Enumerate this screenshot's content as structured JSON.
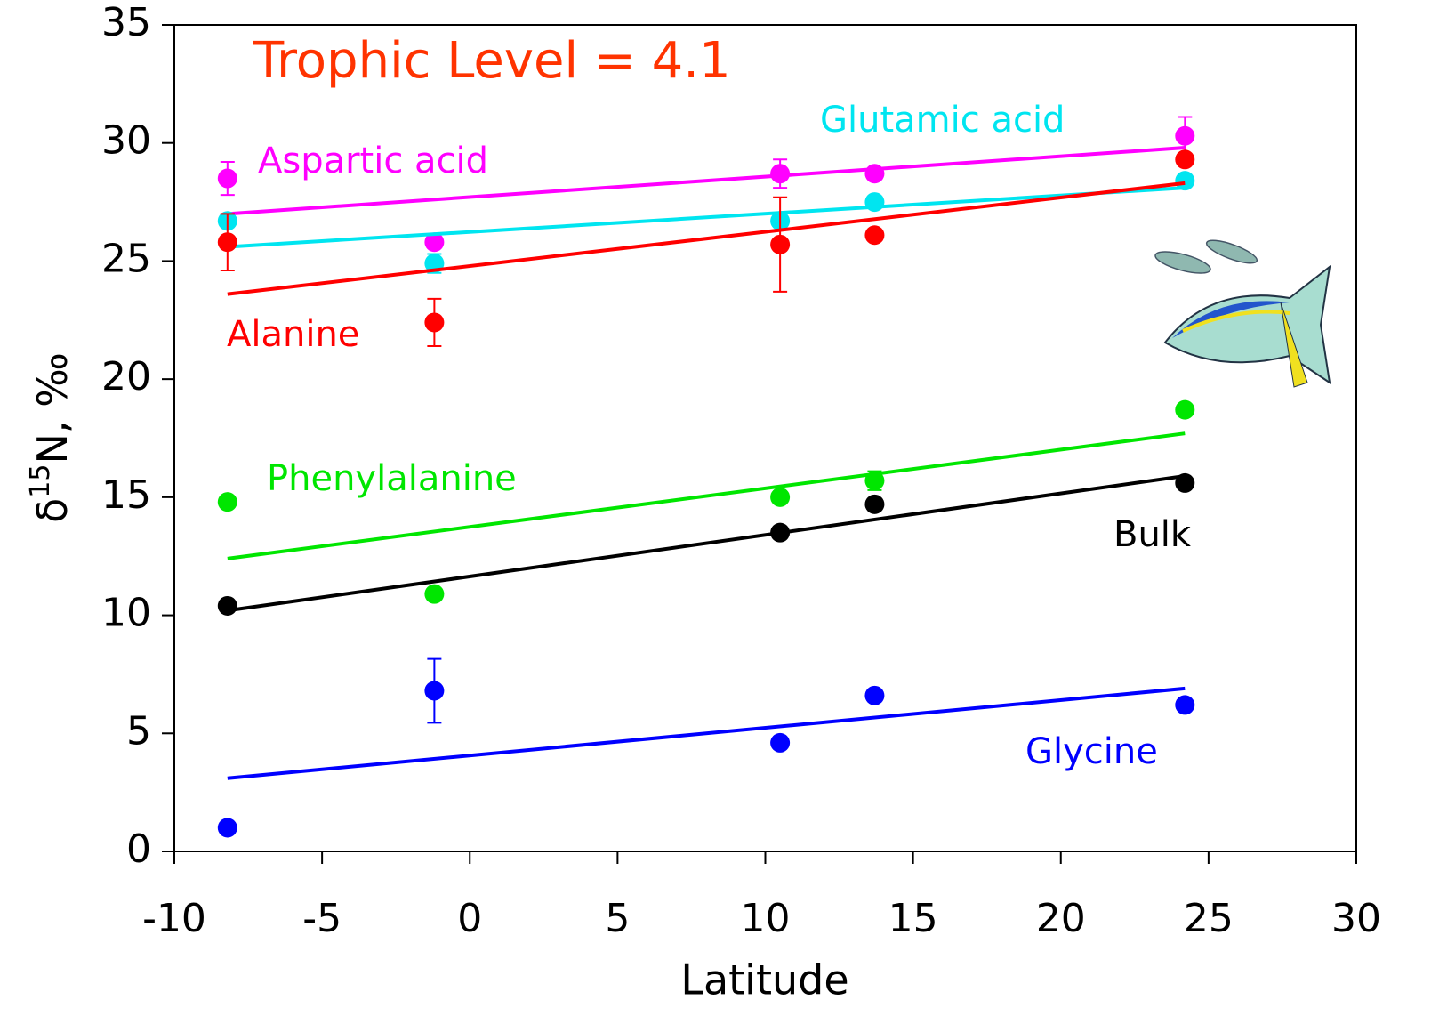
{
  "chart_data": {
    "type": "scatter",
    "annotation": "Trophic Level = 4.1",
    "x_label": "Latitude",
    "y_label": {
      "prefix": "δ",
      "superscript": "15",
      "suffix": "N, ‰"
    },
    "x": [
      -8.2,
      -1.2,
      10.5,
      13.7,
      24.2
    ],
    "xlim": [
      -10,
      30
    ],
    "xticks": [
      -10,
      -5,
      0,
      5,
      10,
      15,
      20,
      25,
      30
    ],
    "ylim": [
      0,
      35
    ],
    "yticks": [
      0,
      5,
      10,
      15,
      20,
      25,
      30,
      35
    ],
    "series": [
      {
        "name": "Aspartic acid",
        "color": "#ff00ff",
        "values": [
          28.5,
          25.8,
          28.7,
          28.7,
          30.3
        ],
        "errors": [
          0.7,
          null,
          0.6,
          null,
          0.8
        ],
        "fit": {
          "x": [
            -8.2,
            24.2
          ],
          "values": [
            27.0,
            29.8
          ]
        }
      },
      {
        "name": "Glutamic acid",
        "color": "#00e5f0",
        "values": [
          26.7,
          24.9,
          26.7,
          27.5,
          28.4
        ],
        "errors": [
          null,
          0.4,
          null,
          null,
          null
        ],
        "fit": {
          "x": [
            -8.2,
            24.2
          ],
          "values": [
            25.6,
            28.1
          ]
        }
      },
      {
        "name": "Alanine",
        "color": "#ff0000",
        "values": [
          25.8,
          22.4,
          25.7,
          26.1,
          29.3
        ],
        "errors": [
          1.2,
          1.0,
          2.0,
          null,
          null
        ],
        "fit": {
          "x": [
            -8.2,
            24.2
          ],
          "values": [
            23.6,
            28.3
          ]
        }
      },
      {
        "name": "Phenylalanine",
        "color": "#00e600",
        "values": [
          14.8,
          10.9,
          15.0,
          15.7,
          18.7
        ],
        "errors": [
          null,
          null,
          null,
          0.4,
          null
        ],
        "fit": {
          "x": [
            -8.2,
            24.2
          ],
          "values": [
            12.4,
            17.7
          ]
        }
      },
      {
        "name": "Bulk",
        "color": "#000000",
        "values": [
          10.4,
          null,
          13.5,
          14.7,
          15.6
        ],
        "errors": [
          null,
          null,
          null,
          null,
          null
        ],
        "fit": {
          "x": [
            -8.2,
            24.2
          ],
          "values": [
            10.2,
            15.9
          ]
        }
      },
      {
        "name": "Glycine",
        "color": "#0000ff",
        "values": [
          1.0,
          6.8,
          4.6,
          6.6,
          6.2
        ],
        "errors": [
          null,
          1.35,
          null,
          null,
          null
        ],
        "fit": {
          "x": [
            -8.2,
            24.2
          ],
          "values": [
            3.1,
            6.9
          ]
        }
      }
    ]
  }
}
